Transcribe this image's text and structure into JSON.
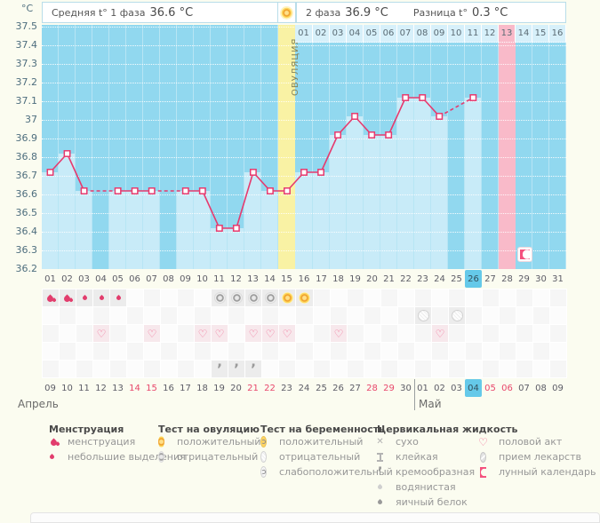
{
  "header": {
    "y_unit": "°C",
    "phase1_label": "Средняя t° 1 фаза",
    "phase1_value": "36.6 °C",
    "phase2_label": "2 фаза",
    "phase2_value": "36.9 °C",
    "diff_label": "Разница t°",
    "diff_value": "0.3 °C",
    "ovulation_band_label": "ОВУЛЯЦИЯ"
  },
  "chart_data": {
    "type": "line",
    "ylabel": "°C",
    "ylim": [
      36.2,
      37.5
    ],
    "yticks": [
      "37.5",
      "37.4",
      "37.3",
      "37.2",
      "37.1",
      "37",
      "36.9",
      "36.8",
      "36.7",
      "36.6",
      "36.5",
      "36.4",
      "36.3",
      "36.2"
    ],
    "cycle_days": [
      "01",
      "02",
      "03",
      "04",
      "05",
      "06",
      "07",
      "08",
      "09",
      "10",
      "11",
      "12",
      "13",
      "14",
      "15",
      "16",
      "17",
      "18",
      "19",
      "20",
      "21",
      "22",
      "23",
      "24",
      "25",
      "26",
      "27",
      "28",
      "29",
      "30",
      "31"
    ],
    "temps": [
      36.7,
      36.8,
      36.6,
      null,
      36.6,
      36.6,
      36.6,
      null,
      36.6,
      36.6,
      36.4,
      36.4,
      36.7,
      36.6,
      36.6,
      36.7,
      36.7,
      36.9,
      37.0,
      36.9,
      36.9,
      37.1,
      37.1,
      37.0,
      null,
      37.1,
      null,
      null,
      null,
      null,
      null
    ],
    "ovulation_day": 15,
    "pink_column_day": 28,
    "moon_day": 29,
    "selected_day": 26,
    "phase2_day_labels": [
      "01",
      "02",
      "03",
      "04",
      "05",
      "06",
      "07",
      "08",
      "09",
      "10",
      "11",
      "12",
      "13",
      "14",
      "15",
      "16"
    ],
    "phase2_pink_label": "13",
    "grid_on": true,
    "line_color": "#e63a6e"
  },
  "events": {
    "menstruation_heavy_days": [
      1,
      2
    ],
    "menstruation_light_days": [
      3,
      4,
      5
    ],
    "ovulation_test_negative_days": [
      11,
      12,
      13,
      14
    ],
    "ovulation_test_positive_days": [
      15,
      16
    ],
    "pregnancy_test_negative_days": [
      23,
      25
    ],
    "intercourse_days": [
      4,
      7,
      10,
      11,
      13,
      14,
      15,
      18,
      24
    ],
    "creamy_fluid_days": [
      11,
      12,
      13
    ]
  },
  "dates": {
    "april_label": "Апрель",
    "may_label": "Май",
    "labels": [
      "09",
      "10",
      "11",
      "12",
      "13",
      "14",
      "15",
      "16",
      "17",
      "18",
      "19",
      "20",
      "21",
      "22",
      "23",
      "24",
      "25",
      "26",
      "27",
      "28",
      "29",
      "30",
      "01",
      "02",
      "03",
      "04",
      "05",
      "06",
      "07",
      "08",
      "09"
    ],
    "red_indices": [
      5,
      6,
      12,
      13,
      19,
      20,
      26,
      27
    ],
    "selected_index": 25,
    "month_split_index": 22
  },
  "legend": {
    "menstruation": {
      "title": "Менструация",
      "items": [
        {
          "icon": "drop-heavy",
          "label": "менструация"
        },
        {
          "icon": "drop-light",
          "label": "небольшие выделения"
        }
      ]
    },
    "ovulation_test": {
      "title": "Тест на овуляцию",
      "items": [
        {
          "icon": "test-positive",
          "label": "положительный"
        },
        {
          "icon": "test-negative",
          "label": "отрицательный"
        }
      ]
    },
    "pregnancy_test": {
      "title": "Тест на беременность",
      "items": [
        {
          "icon": "preg-positive",
          "label": "положительный"
        },
        {
          "icon": "preg-negative",
          "label": "отрицательный"
        },
        {
          "icon": "preg-weak",
          "label": "слабоположительный"
        }
      ]
    },
    "cervical_fluid": {
      "title": "Цервикальная жидкость",
      "items": [
        {
          "icon": "dry",
          "label": "сухо"
        },
        {
          "icon": "sticky",
          "label": "клейкая"
        },
        {
          "icon": "creamy",
          "label": "кремообразная"
        },
        {
          "icon": "watery",
          "label": "водянистая"
        },
        {
          "icon": "eggwhite",
          "label": "яичный белок"
        }
      ]
    },
    "other": {
      "title": "",
      "items": [
        {
          "icon": "heart",
          "label": "половой акт"
        },
        {
          "icon": "pill",
          "label": "прием лекарств"
        },
        {
          "icon": "moon",
          "label": "лунный календарь"
        }
      ]
    }
  },
  "colors": {
    "chart_bg": "#91d8ef",
    "column_fill": "#c8ebf8",
    "ovulation_band": "#f9f2a4",
    "pink_band": "#f9bac9",
    "line": "#e63a6e",
    "selected_blue": "#65c9e9",
    "red_date": "#e8476b"
  }
}
